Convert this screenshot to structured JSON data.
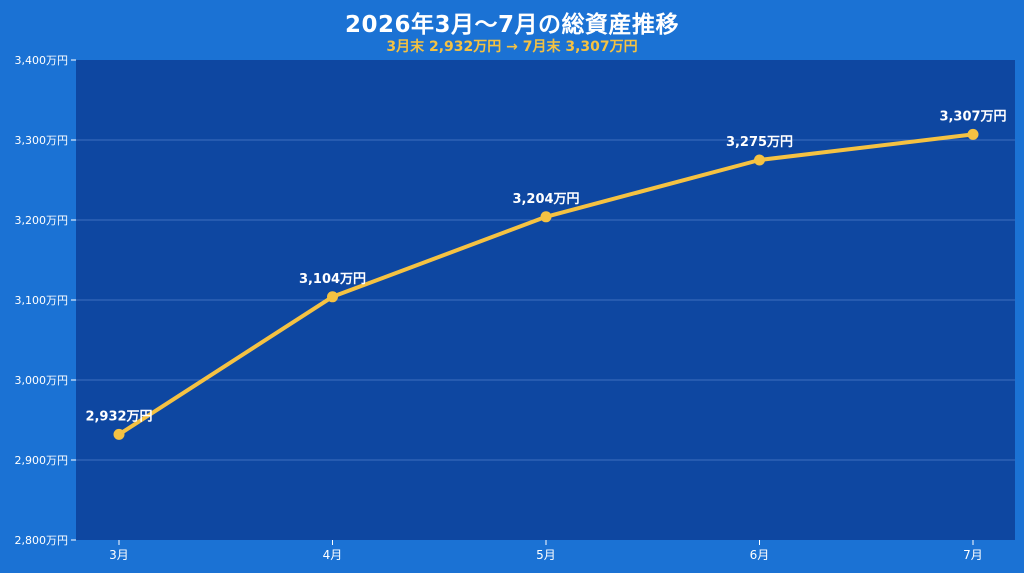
{
  "chart_data": {
    "type": "line",
    "title": "2026年3月〜7月の総資産推移",
    "subtitle": "3月末 2,932万円 → 7月末 3,307万円",
    "categories": [
      "3月",
      "4月",
      "5月",
      "6月",
      "7月"
    ],
    "series": [
      {
        "values": [
          2932,
          3104,
          3204,
          3275,
          3307
        ],
        "labels": [
          "2,932万円",
          "3,104万円",
          "3,204万円",
          "3,275万円",
          "3,307万円"
        ]
      }
    ],
    "ylim": [
      2800,
      3400
    ],
    "yticks": [
      2800,
      2900,
      3000,
      3100,
      3200,
      3300,
      3400
    ],
    "ytick_labels": [
      "2,800万円",
      "2,900万円",
      "3,000万円",
      "3,100万円",
      "3,200万円",
      "3,300万円",
      "3,400万円"
    ],
    "grid": true,
    "colors": {
      "background": "#1b72d4",
      "plot_area": "#0e47a1",
      "line": "#f5c242",
      "subtitle": "#f5c242",
      "text": "#ffffff",
      "grid": "#3f6fc0"
    }
  }
}
